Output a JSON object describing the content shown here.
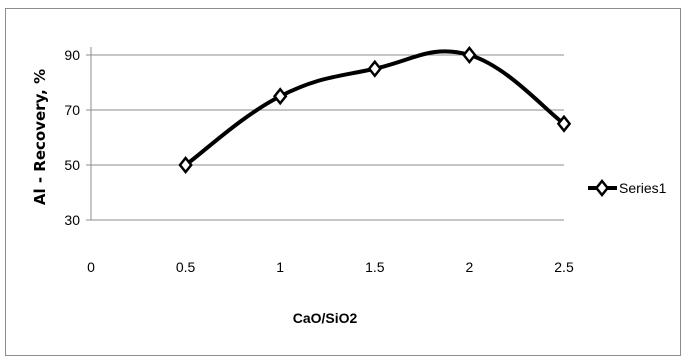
{
  "chart_data": {
    "type": "line",
    "title": "",
    "xlabel": "CaO/SiO2",
    "ylabel": "Al - Recovery, %",
    "x_ticks": [
      "0",
      "0.5",
      "1",
      "1.5",
      "2",
      "2.5"
    ],
    "y_ticks": [
      "30",
      "50",
      "70",
      "90"
    ],
    "xlim": [
      0,
      2.5
    ],
    "ylim": [
      30,
      90
    ],
    "grid": "horizontal",
    "legend_position": "right",
    "smoothed": true,
    "series": [
      {
        "name": "Series1",
        "color": "#000000",
        "marker": "diamond",
        "x": [
          0.5,
          1,
          1.5,
          2,
          2.5
        ],
        "y": [
          50,
          75,
          85,
          90,
          65
        ]
      }
    ]
  }
}
